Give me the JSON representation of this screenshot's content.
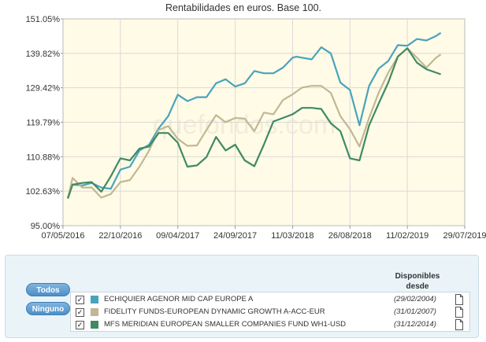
{
  "chart_data": {
    "type": "line",
    "title": "Rentabilidades en euros. Base 100.",
    "y_ticks": [
      "151.05%",
      "139.82%",
      "129.42%",
      "119.79%",
      "110.88%",
      "102.63%",
      "95.00%"
    ],
    "y_tick_values": [
      151.05,
      139.82,
      129.42,
      119.79,
      110.88,
      102.63,
      95.0
    ],
    "x_ticks": [
      "07/05/2016",
      "22/10/2016",
      "09/04/2017",
      "24/09/2017",
      "11/03/2018",
      "26/08/2018",
      "11/02/2019",
      "29/07/2019"
    ],
    "ylim": [
      95.0,
      151.05
    ],
    "x_range": [
      "07/05/2016",
      "29/07/2019"
    ],
    "grid": true,
    "watermark": "quefondos.com",
    "series": [
      {
        "name": "ECHIQUIER AGENOR MID CAP EUROPE A",
        "color": "#4aa3bd",
        "x": [
          0.25,
          0.5,
          1.0,
          1.5,
          2.0,
          2.5,
          3.0,
          3.5,
          4.0,
          4.5,
          5.0,
          5.5,
          6.0,
          6.5,
          7.0,
          7.5,
          8.0,
          8.5,
          9.0,
          9.5,
          10.0,
          10.5,
          11.0,
          11.5,
          12.0,
          12.2,
          12.5,
          13.0,
          13.5,
          14.0,
          14.5,
          15.0,
          15.5,
          16.0,
          16.5,
          17.0,
          17.5,
          18.0,
          18.5,
          19.0,
          19.5,
          19.75
        ],
        "values": [
          101.2,
          104.2,
          104.0,
          104.6,
          103.5,
          103.2,
          107.8,
          108.5,
          112.5,
          114.0,
          118.2,
          121.5,
          127.5,
          125.7,
          126.8,
          126.8,
          130.8,
          132.0,
          129.8,
          130.8,
          134.5,
          133.8,
          133.8,
          135.5,
          138.5,
          138.8,
          138.5,
          138.0,
          141.8,
          139.8,
          131.0,
          128.8,
          119.0,
          130.0,
          135.2,
          137.5,
          142.5,
          142.3,
          144.5,
          144.0,
          145.5,
          146.5
        ]
      },
      {
        "name": "FIDELITY FUNDS-EUROPEAN DYNAMIC GROWTH A-ACC-EUR",
        "color": "#c2b794",
        "x": [
          0.25,
          0.5,
          1.0,
          1.5,
          2.0,
          2.5,
          3.0,
          3.5,
          4.0,
          4.5,
          5.0,
          5.5,
          6.0,
          6.5,
          7.0,
          7.5,
          8.0,
          8.5,
          9.0,
          9.5,
          10.0,
          10.5,
          11.0,
          11.5,
          12.0,
          12.5,
          13.0,
          13.5,
          14.0,
          14.5,
          15.0,
          15.5,
          16.0,
          16.5,
          17.0,
          17.5,
          18.0,
          18.5,
          19.0,
          19.5,
          19.75
        ],
        "values": [
          101.0,
          105.8,
          103.5,
          103.5,
          101.2,
          102.0,
          104.8,
          105.3,
          108.5,
          112.5,
          117.8,
          118.8,
          115.5,
          113.7,
          113.8,
          117.8,
          121.8,
          119.8,
          121.0,
          120.8,
          117.5,
          122.5,
          122.0,
          126.0,
          127.6,
          129.5,
          130.0,
          130.0,
          128.0,
          121.5,
          118.0,
          113.5,
          121.0,
          128.0,
          134.0,
          138.8,
          141.5,
          138.5,
          135.5,
          138.5,
          139.5
        ]
      },
      {
        "name": "MFS MERIDIAN EUROPEAN SMALLER COMPANIES FUND WH1-USD",
        "color": "#3f8a63",
        "x": [
          0.25,
          0.5,
          1.0,
          1.5,
          2.0,
          2.5,
          3.0,
          3.5,
          4.0,
          4.5,
          5.0,
          5.5,
          6.0,
          6.5,
          7.0,
          7.5,
          8.0,
          8.5,
          9.0,
          9.5,
          10.0,
          10.5,
          11.0,
          11.5,
          12.0,
          12.5,
          13.0,
          13.5,
          14.0,
          14.5,
          15.0,
          15.5,
          16.0,
          16.5,
          17.0,
          17.5,
          18.0,
          18.5,
          19.0,
          19.5,
          19.75
        ],
        "values": [
          101.0,
          104.2,
          104.6,
          104.8,
          102.5,
          106.2,
          110.5,
          110.0,
          113.0,
          113.5,
          117.0,
          117.0,
          114.5,
          108.5,
          108.8,
          110.8,
          116.0,
          112.5,
          114.0,
          110.0,
          108.6,
          114.0,
          120.0,
          121.0,
          122.0,
          123.8,
          123.8,
          123.5,
          119.5,
          117.5,
          110.5,
          110.0,
          119.0,
          125.0,
          131.0,
          138.8,
          141.5,
          137.0,
          135.0,
          134.0,
          133.5
        ]
      }
    ]
  },
  "legend": {
    "all_button": "Todos",
    "none_button": "Ninguno",
    "header_line1": "Disponibles",
    "header_line2": "desde",
    "funds": [
      {
        "name": "ECHIQUIER AGENOR MID CAP EUROPE A",
        "since": "(29/02/2004)",
        "checked": "✓",
        "color": "#4aa3bd"
      },
      {
        "name": "FIDELITY FUNDS-EUROPEAN DYNAMIC GROWTH A-ACC-EUR",
        "since": "(31/01/2007)",
        "checked": "✓",
        "color": "#c2b794"
      },
      {
        "name": "MFS MERIDIAN EUROPEAN SMALLER COMPANIES FUND WH1-USD",
        "since": "(31/12/2014)",
        "checked": "✓",
        "color": "#3f8a63"
      }
    ]
  }
}
